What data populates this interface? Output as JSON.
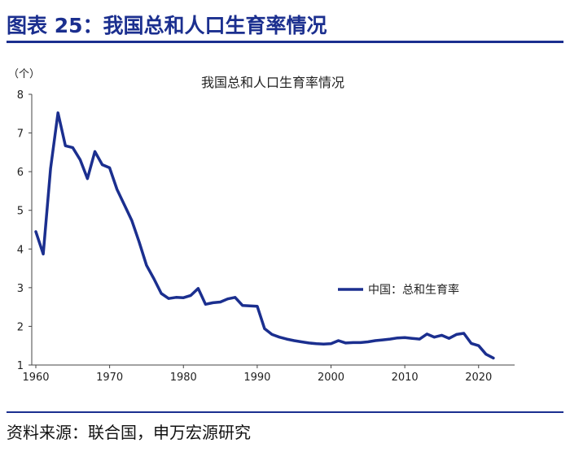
{
  "figure_title": "图表 25：我国总和人口生育率情况",
  "source_note": "资料来源：联合国，申万宏源研究",
  "colors": {
    "brand": "#1b2f8f",
    "line": "#1b2f8f"
  },
  "chart_data": {
    "type": "line",
    "title": "我国总和人口生育率情况",
    "y_unit_label": "（个）",
    "xlabel": "",
    "ylabel": "",
    "xlim": [
      1960,
      2023
    ],
    "ylim": [
      1,
      8
    ],
    "x_ticks": [
      1960,
      1970,
      1980,
      1990,
      2000,
      2010,
      2020
    ],
    "y_ticks": [
      1,
      2,
      3,
      4,
      5,
      6,
      7,
      8
    ],
    "grid": false,
    "legend_position": "right-middle",
    "series": [
      {
        "name": "中国：总和生育率",
        "x": [
          1960,
          1961,
          1962,
          1963,
          1964,
          1965,
          1966,
          1967,
          1968,
          1969,
          1970,
          1971,
          1972,
          1973,
          1974,
          1975,
          1976,
          1977,
          1978,
          1979,
          1980,
          1981,
          1982,
          1983,
          1984,
          1985,
          1986,
          1987,
          1988,
          1989,
          1990,
          1991,
          1992,
          1993,
          1994,
          1995,
          1996,
          1997,
          1998,
          1999,
          2000,
          2001,
          2002,
          2003,
          2004,
          2005,
          2006,
          2007,
          2008,
          2009,
          2010,
          2011,
          2012,
          2013,
          2014,
          2015,
          2016,
          2017,
          2018,
          2019,
          2020,
          2021,
          2022
        ],
        "values": [
          4.45,
          3.87,
          6.08,
          7.52,
          6.67,
          6.62,
          6.31,
          5.82,
          6.52,
          6.18,
          6.1,
          5.54,
          5.14,
          4.74,
          4.18,
          3.58,
          3.23,
          2.85,
          2.72,
          2.75,
          2.74,
          2.8,
          2.98,
          2.57,
          2.61,
          2.63,
          2.71,
          2.75,
          2.54,
          2.53,
          2.52,
          1.94,
          1.79,
          1.72,
          1.67,
          1.63,
          1.6,
          1.57,
          1.55,
          1.54,
          1.55,
          1.63,
          1.57,
          1.58,
          1.58,
          1.6,
          1.63,
          1.65,
          1.67,
          1.7,
          1.71,
          1.69,
          1.67,
          1.8,
          1.72,
          1.77,
          1.69,
          1.79,
          1.82,
          1.56,
          1.5,
          1.28,
          1.18
        ]
      }
    ]
  }
}
